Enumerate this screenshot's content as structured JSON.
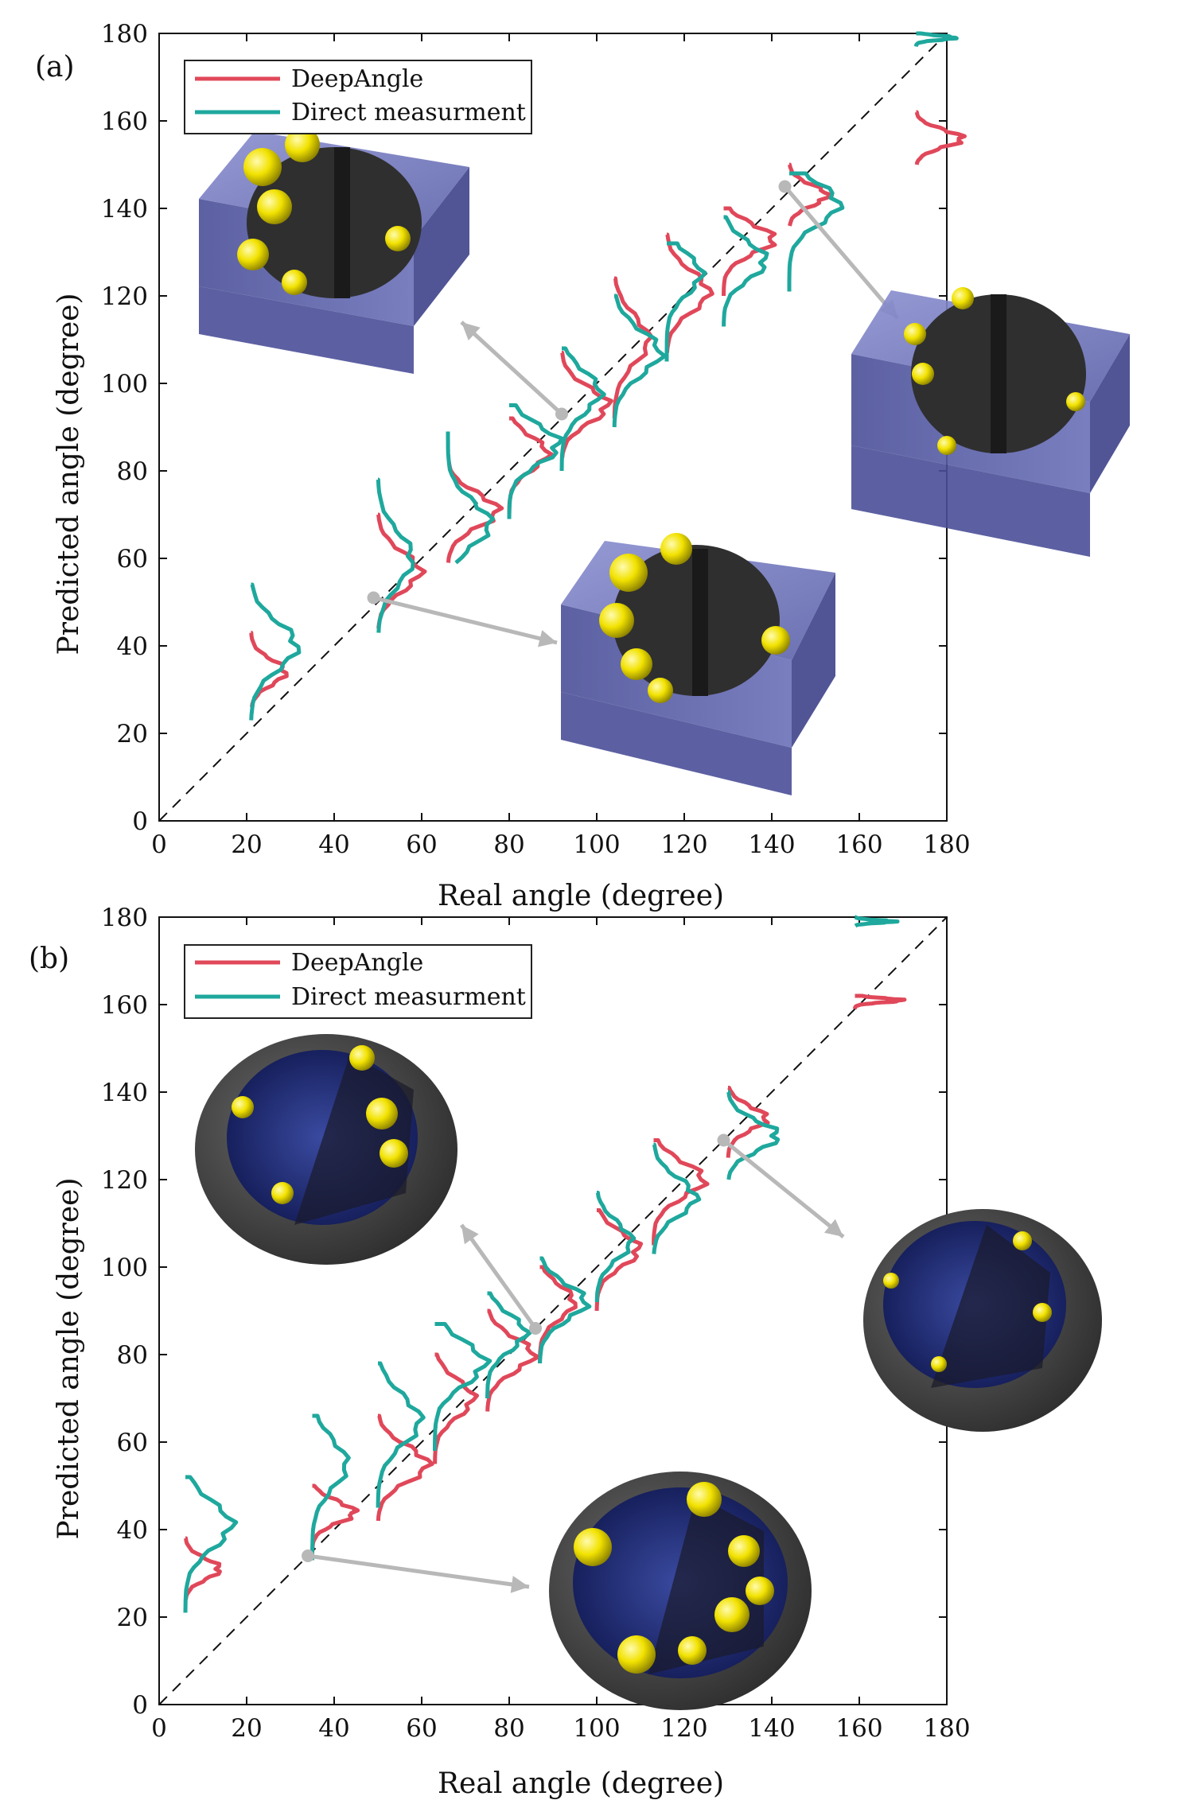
{
  "chart_data": [
    {
      "type": "line",
      "panel_label": "(a)",
      "xlabel": "Real angle (degree)",
      "ylabel": "Predicted angle (degree)",
      "xlim": [
        0,
        180
      ],
      "ylim": [
        0,
        180
      ],
      "xticks": [
        0,
        20,
        40,
        60,
        80,
        100,
        120,
        140,
        160,
        180
      ],
      "yticks": [
        0,
        20,
        40,
        60,
        80,
        100,
        120,
        140,
        160,
        180
      ],
      "xtick_labels": [
        "0",
        "20",
        "40",
        "60",
        "80",
        "100",
        "120",
        "140",
        "160",
        "180"
      ],
      "ytick_labels": [
        "0",
        "20",
        "40",
        "60",
        "80",
        "100",
        "120",
        "140",
        "160",
        "180"
      ],
      "legend": {
        "placement": "top-left",
        "entries": [
          "DeepAngle",
          "Direct measurment"
        ]
      },
      "reference_line": "y = x (dashed)",
      "colors": {
        "DeepAngle": "#e0485a",
        "Direct measurment": "#1fa89d"
      },
      "series": [
        {
          "name": "DeepAngle",
          "bases": [
            21,
            50,
            66,
            80,
            92,
            104,
            116,
            129,
            144,
            173
          ],
          "centers": [
            34,
            57,
            71,
            84,
            95,
            110,
            121,
            133,
            143,
            156
          ],
          "ranges": [
            [
              26,
              43
            ],
            [
              44,
              70
            ],
            [
              59,
              82
            ],
            [
              70,
              92
            ],
            [
              83,
              107
            ],
            [
              92,
              124
            ],
            [
              107,
              134
            ],
            [
              120,
              140
            ],
            [
              136,
              150
            ],
            [
              150,
              162
            ]
          ]
        },
        {
          "name": "Direct measurment",
          "bases": [
            21,
            50,
            66,
            80,
            92,
            104,
            116,
            129,
            144,
            173
          ],
          "centers": [
            40,
            60,
            68,
            86,
            98,
            107,
            125,
            128,
            141,
            179
          ],
          "ranges": [
            [
              23,
              54
            ],
            [
              43,
              78
            ],
            [
              59,
              89
            ],
            [
              69,
              95
            ],
            [
              80,
              108
            ],
            [
              90,
              120
            ],
            [
              105,
              132
            ],
            [
              113,
              138
            ],
            [
              121,
              148
            ],
            [
              177,
              180
            ]
          ]
        }
      ],
      "markers": [
        {
          "x": 49,
          "y": 51
        },
        {
          "x": 92,
          "y": 93
        },
        {
          "x": 143,
          "y": 145
        }
      ]
    },
    {
      "type": "line",
      "panel_label": "(b)",
      "xlabel": "Real angle (degree)",
      "ylabel": "Predicted angle (degree)",
      "xlim": [
        0,
        180
      ],
      "ylim": [
        0,
        180
      ],
      "xticks": [
        0,
        20,
        40,
        60,
        80,
        100,
        120,
        140,
        160,
        180
      ],
      "yticks": [
        0,
        20,
        40,
        60,
        80,
        100,
        120,
        140,
        160,
        180
      ],
      "xtick_labels": [
        "0",
        "20",
        "40",
        "60",
        "80",
        "100",
        "120",
        "140",
        "160",
        "180"
      ],
      "ytick_labels": [
        "0",
        "20",
        "40",
        "60",
        "80",
        "100",
        "120",
        "140",
        "160",
        "180"
      ],
      "legend": {
        "placement": "top-left",
        "entries": [
          "DeepAngle",
          "Direct measurment"
        ]
      },
      "reference_line": "y = x (dashed)",
      "colors": {
        "DeepAngle": "#e0485a",
        "Direct measurment": "#1fa89d"
      },
      "series": [
        {
          "name": "DeepAngle",
          "bases": [
            6,
            35,
            50,
            63,
            75,
            87,
            100,
            113,
            130,
            159
          ],
          "centers": [
            31,
            44,
            55,
            70,
            80,
            92,
            104,
            120,
            134,
            161
          ],
          "ranges": [
            [
              24,
              38
            ],
            [
              35,
              50
            ],
            [
              42,
              66
            ],
            [
              55,
              80
            ],
            [
              67,
              90
            ],
            [
              78,
              100
            ],
            [
              90,
              113
            ],
            [
              105,
              129
            ],
            [
              125,
              141
            ],
            [
              159,
              162
            ]
          ]
        },
        {
          "name": "Direct measurment",
          "bases": [
            6,
            35,
            50,
            63,
            75,
            87,
            100,
            113,
            130,
            159
          ],
          "centers": [
            41,
            55,
            65,
            78,
            85,
            92,
            106,
            116,
            130,
            179
          ],
          "ranges": [
            [
              21,
              52
            ],
            [
              33,
              66
            ],
            [
              45,
              78
            ],
            [
              58,
              87
            ],
            [
              70,
              94
            ],
            [
              78,
              102
            ],
            [
              92,
              117
            ],
            [
              103,
              128
            ],
            [
              120,
              140
            ],
            [
              178,
              180
            ]
          ]
        }
      ],
      "markers": [
        {
          "x": 34,
          "y": 34
        },
        {
          "x": 86,
          "y": 86
        },
        {
          "x": 129,
          "y": 129
        }
      ]
    }
  ]
}
